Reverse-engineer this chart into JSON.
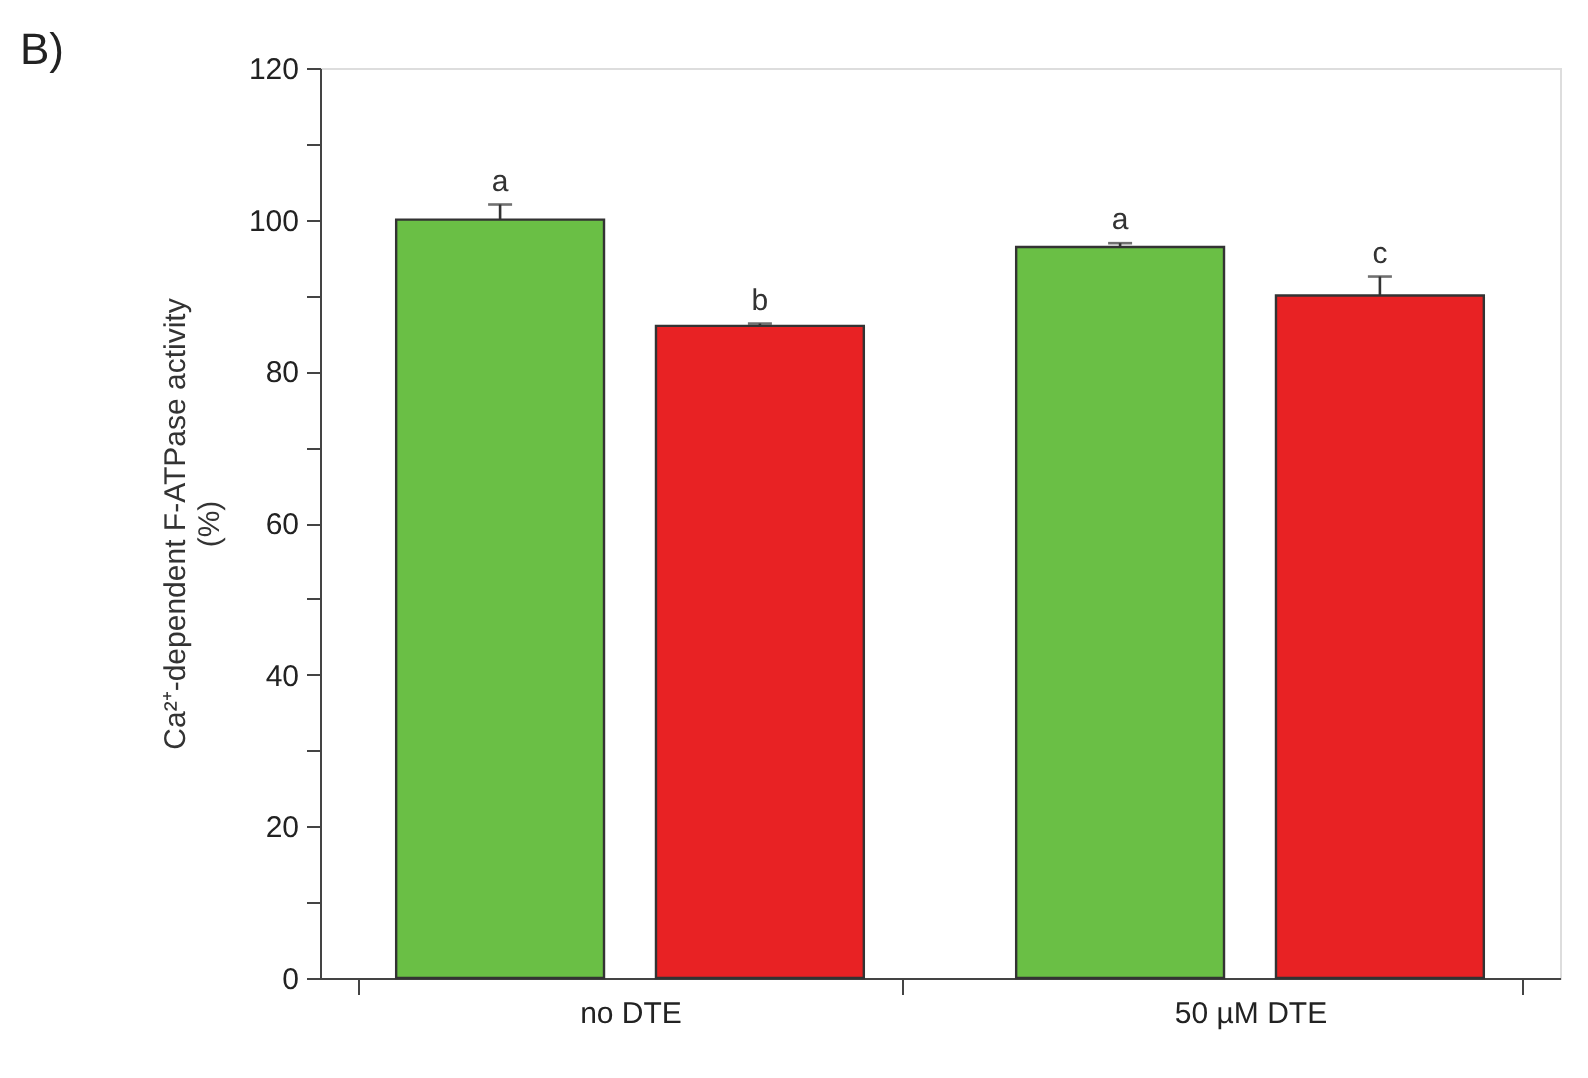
{
  "chart_data": {
    "type": "bar",
    "title": "B)",
    "ylabel": "Ca²⁺-dependent F-ATPase activity (%)",
    "categories": [
      "no DTE",
      "50 µM DTE"
    ],
    "series": [
      {
        "color": "#6abf45",
        "values": [
          100,
          96.4
        ],
        "errors": [
          2,
          0.5
        ]
      },
      {
        "color": "#e82224",
        "values": [
          86,
          90
        ],
        "errors": [
          0.3,
          2.5
        ]
      }
    ],
    "ylim": [
      0,
      120
    ],
    "yticks": [
      0,
      {
        "value": 10,
        "label": null
      },
      20,
      {
        "value": 30,
        "label": null
      },
      40,
      {
        "value": 50,
        "label": null
      },
      60,
      {
        "value": 70,
        "label": null
      },
      80,
      {
        "value": 90,
        "label": null
      },
      100,
      {
        "value": 110,
        "label": null
      },
      120
    ],
    "annotations": [
      "a",
      "b",
      "a",
      "c"
    ],
    "grid": false
  }
}
